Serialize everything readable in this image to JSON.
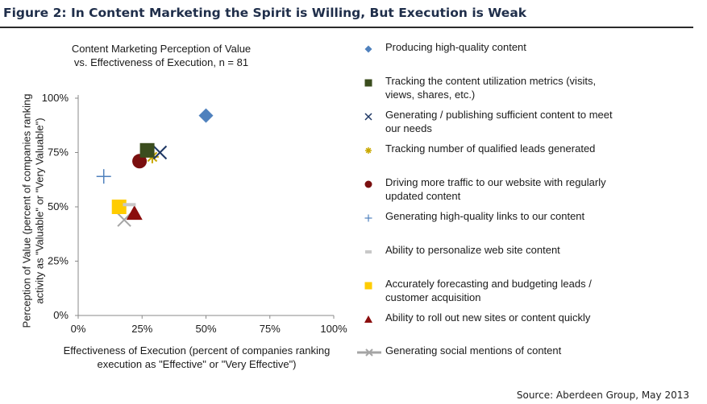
{
  "figure_title": "Figure 2: In Content Marketing the Spirit is Willing, But Execution is Weak",
  "source": "Source: Aberdeen Group, May 2013",
  "chart_data": {
    "type": "scatter",
    "title_lines": [
      "Content Marketing  Perception of Value",
      "vs. Effectiveness of Execution, n = 81"
    ],
    "xlabel_lines": [
      "Effectiveness of Execution (percent of companies ranking",
      "execution as \"Effective\" or \"Very Effective\")"
    ],
    "ylabel_lines": [
      "Perception of Value (percent of companies ranking",
      "activity as \"Valuable\" or \"Very Valuable\")"
    ],
    "x_ticks": [
      "0%",
      "25%",
      "50%",
      "75%",
      "100%"
    ],
    "y_ticks": [
      "0%",
      "25%",
      "50%",
      "75%",
      "100%"
    ],
    "xlim": [
      0,
      100
    ],
    "ylim": [
      0,
      100
    ],
    "grid": false,
    "legend_position": "right",
    "series": [
      {
        "name": "Producing high-quality content",
        "x": 50,
        "y": 92,
        "marker": "diamond",
        "color": "#4f81bd"
      },
      {
        "name": "Tracking the content utilization metrics (visits, views, shares, etc.)",
        "x": 27,
        "y": 76,
        "marker": "square",
        "color": "#3b4d1e"
      },
      {
        "name": "Generating / publishing sufficient content to meet our needs",
        "x": 32,
        "y": 75,
        "marker": "x",
        "color": "#1f3864"
      },
      {
        "name": "Tracking number of qualified leads generated",
        "x": 29,
        "y": 73,
        "marker": "star",
        "color": "#c9a800"
      },
      {
        "name": "Driving more traffic to our website with regularly updated content",
        "x": 24,
        "y": 71,
        "marker": "circle",
        "color": "#7a0f0f"
      },
      {
        "name": "Generating high-quality links to our content",
        "x": 10,
        "y": 64,
        "marker": "plus",
        "color": "#4f81bd"
      },
      {
        "name": "Ability to personalize web site content",
        "x": 20,
        "y": 51,
        "marker": "dash",
        "color": "#c8c8c8"
      },
      {
        "name": "Accurately forecasting and budgeting leads / customer acquisition",
        "x": 16,
        "y": 50,
        "marker": "square",
        "color": "#ffcc00"
      },
      {
        "name": "Ability to roll out new sites or content quickly",
        "x": 22,
        "y": 47,
        "marker": "triangle",
        "color": "#8b0e0e"
      },
      {
        "name": "Generating social mentions of content",
        "x": 18,
        "y": 44,
        "marker": "xline",
        "color": "#a5a5a5"
      }
    ]
  }
}
